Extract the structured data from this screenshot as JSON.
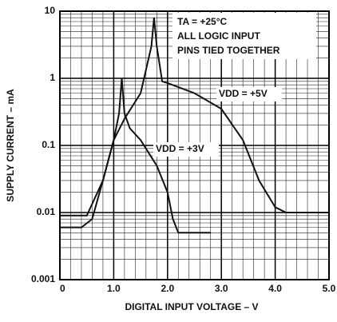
{
  "chart_data": {
    "type": "line",
    "xlabel": "DIGITAL INPUT VOLTAGE – V",
    "ylabel": "SUPPLY CURRENT – mA",
    "annotations": [
      "TA = +25°C",
      "ALL LOGIC INPUT",
      "PINS TIED TOGETHER"
    ],
    "log_y": true,
    "grid": true,
    "minor_grid": true,
    "xlim": [
      0,
      5
    ],
    "xticks": [
      0,
      {
        "value": 1,
        "label": "1.0"
      },
      {
        "value": 2,
        "label": "2.0"
      },
      {
        "value": 3,
        "label": "3.0"
      },
      {
        "value": 4,
        "label": "4.0"
      },
      {
        "value": 5,
        "label": "5.0"
      }
    ],
    "ylim": [
      0.001,
      10
    ],
    "yticks": [
      0.001,
      0.01,
      0.1,
      1,
      10
    ],
    "series": [
      {
        "name": "VDD = +5V",
        "color": "#111111",
        "x": [
          0,
          0.5,
          0.8,
          1.0,
          1.2,
          1.5,
          1.7,
          1.75,
          1.8,
          1.9,
          2.0,
          2.5,
          3.0,
          3.4,
          3.7,
          4.0,
          4.2,
          5.0
        ],
        "values": [
          0.009,
          0.009,
          0.03,
          0.12,
          0.25,
          0.6,
          3,
          8,
          3,
          0.9,
          0.85,
          0.6,
          0.35,
          0.12,
          0.03,
          0.012,
          0.01,
          0.01
        ]
      },
      {
        "name": "VDD = +3V",
        "color": "#111111",
        "x": [
          0,
          0.4,
          0.6,
          0.8,
          1.0,
          1.1,
          1.15,
          1.2,
          1.3,
          1.5,
          1.8,
          2.0,
          2.1,
          2.2,
          2.4,
          2.8
        ],
        "values": [
          0.006,
          0.006,
          0.008,
          0.03,
          0.12,
          0.3,
          1.0,
          0.3,
          0.18,
          0.12,
          0.05,
          0.02,
          0.008,
          0.005,
          0.005,
          0.005
        ]
      }
    ]
  }
}
